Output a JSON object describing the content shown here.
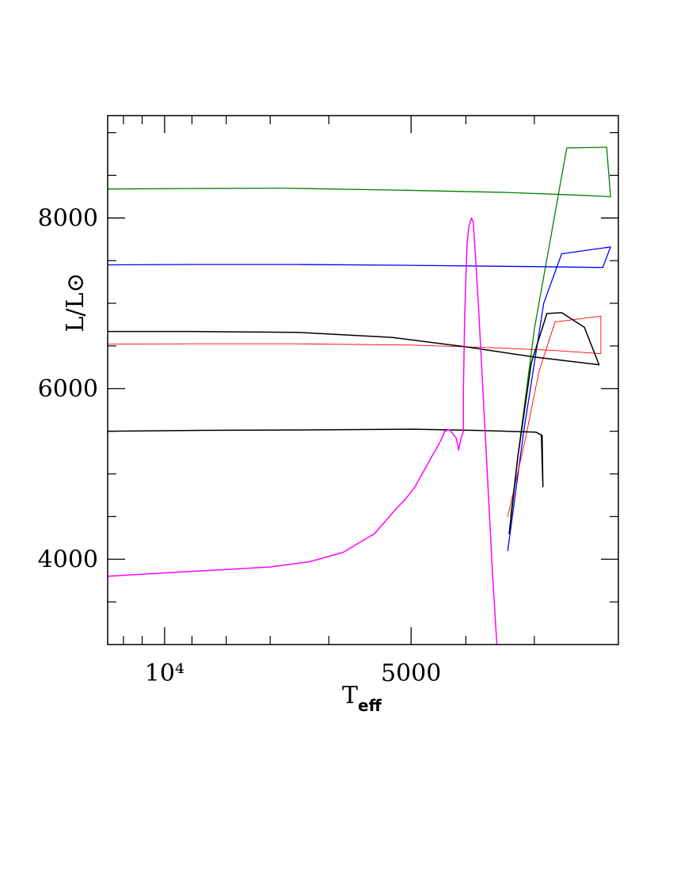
{
  "chart_data": {
    "type": "line",
    "x_scale": "reciprocal",
    "xlabel": "T",
    "xlabel_sub": "eff",
    "ylabel": "L/L⊙",
    "xlim": [
      13000,
      3520
    ],
    "ylim": [
      3000,
      9200
    ],
    "x_ticks": [
      {
        "value": 10000,
        "label": "10⁴"
      },
      {
        "value": 5000,
        "label": "5000"
      }
    ],
    "y_ticks": [
      {
        "value": 4000,
        "label": "4000"
      },
      {
        "value": 6000,
        "label": "6000"
      },
      {
        "value": 8000,
        "label": "8000"
      }
    ],
    "x_minor_ticks": [
      12000,
      11000,
      9000,
      8000,
      7000,
      6000,
      4500,
      4000
    ],
    "y_minor_ticks": [
      3500,
      4500,
      5000,
      5500,
      6500,
      7000,
      7500,
      8500,
      9000
    ],
    "grid": false,
    "series": [
      {
        "color": "#008000",
        "width": 1.3,
        "points": [
          [
            13000,
            8340
          ],
          [
            9000,
            8345
          ],
          [
            6800,
            8350
          ],
          [
            5050,
            8325
          ],
          [
            4200,
            8300
          ],
          [
            3760,
            8270
          ],
          [
            3560,
            8250
          ],
          [
            3580,
            8830
          ],
          [
            3800,
            8820
          ],
          [
            4000,
            6700
          ],
          [
            4110,
            5200
          ],
          [
            4160,
            4500
          ]
        ]
      },
      {
        "color": "#0000ff",
        "width": 1.3,
        "points": [
          [
            13000,
            7450
          ],
          [
            9000,
            7455
          ],
          [
            6500,
            7455
          ],
          [
            5000,
            7445
          ],
          [
            4000,
            7430
          ],
          [
            3600,
            7420
          ],
          [
            3560,
            7660
          ],
          [
            3830,
            7580
          ],
          [
            3940,
            7000
          ],
          [
            4070,
            5500
          ],
          [
            4180,
            4100
          ]
        ]
      },
      {
        "color": "#ff0000",
        "width": 0.9,
        "points": [
          [
            13000,
            6520
          ],
          [
            9000,
            6525
          ],
          [
            6500,
            6525
          ],
          [
            5000,
            6510
          ],
          [
            4300,
            6480
          ],
          [
            3900,
            6450
          ],
          [
            3610,
            6410
          ],
          [
            3610,
            6850
          ],
          [
            3870,
            6780
          ],
          [
            3970,
            6200
          ],
          [
            4060,
            5400
          ],
          [
            4180,
            4500
          ]
        ]
      },
      {
        "color": "#000000",
        "width": 1.5,
        "points": [
          [
            13000,
            6670
          ],
          [
            9000,
            6670
          ],
          [
            6500,
            6660
          ],
          [
            5200,
            6600
          ],
          [
            4500,
            6490
          ],
          [
            4000,
            6370
          ],
          [
            3620,
            6280
          ],
          [
            3700,
            6720
          ],
          [
            3830,
            6890
          ],
          [
            3920,
            6880
          ],
          [
            4020,
            6300
          ],
          [
            4110,
            5200
          ],
          [
            4170,
            4300
          ]
        ]
      },
      {
        "color": "#000000",
        "width": 1.5,
        "points": [
          [
            13000,
            5500
          ],
          [
            9000,
            5510
          ],
          [
            6500,
            5515
          ],
          [
            5000,
            5525
          ],
          [
            4400,
            5510
          ],
          [
            3990,
            5490
          ],
          [
            3950,
            5450
          ],
          [
            3945,
            4850
          ],
          [
            3955,
            5460
          ]
        ]
      },
      {
        "color": "#ff00ff",
        "width": 1.5,
        "points": [
          [
            13000,
            3800
          ],
          [
            10000,
            3840
          ],
          [
            8000,
            3880
          ],
          [
            7000,
            3910
          ],
          [
            6300,
            3970
          ],
          [
            5800,
            4080
          ],
          [
            5400,
            4300
          ],
          [
            5150,
            4600
          ],
          [
            5060,
            4700
          ],
          [
            4960,
            4850
          ],
          [
            4800,
            5200
          ],
          [
            4720,
            5380
          ],
          [
            4680,
            5500
          ],
          [
            4640,
            5520
          ],
          [
            4580,
            5420
          ],
          [
            4560,
            5280
          ],
          [
            4540,
            5420
          ],
          [
            4520,
            5500
          ],
          [
            4520,
            6000
          ],
          [
            4510,
            6800
          ],
          [
            4500,
            7300
          ],
          [
            4490,
            7700
          ],
          [
            4475,
            7900
          ],
          [
            4455,
            8000
          ],
          [
            4440,
            7950
          ],
          [
            4420,
            7500
          ],
          [
            4400,
            7000
          ],
          [
            4375,
            6300
          ],
          [
            4330,
            5000
          ],
          [
            4290,
            3800
          ],
          [
            4255,
            2900
          ]
        ]
      }
    ]
  }
}
